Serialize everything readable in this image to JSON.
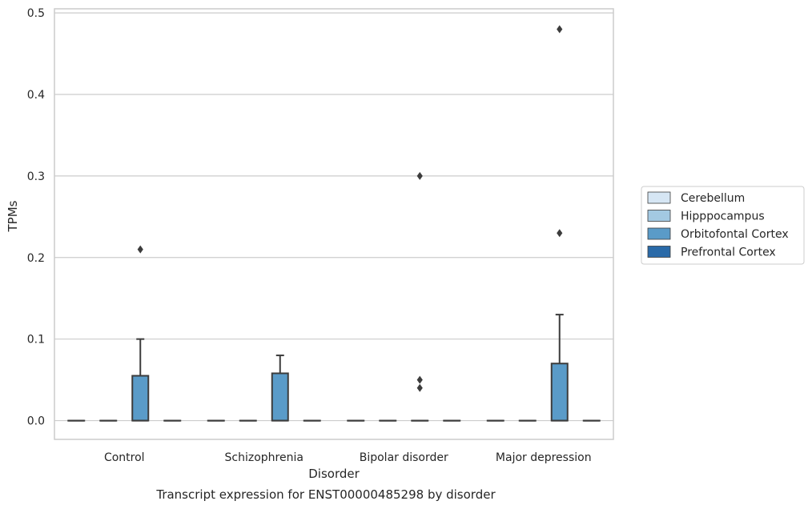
{
  "chart_data": {
    "type": "box",
    "title": "",
    "caption": "Transcript expression for ENST00000485298 by disorder",
    "xlabel": "Disorder",
    "ylabel": "TPMs",
    "ylim": [
      -0.023,
      0.505
    ],
    "yticks": [
      0.0,
      0.1,
      0.2,
      0.3,
      0.4,
      0.5
    ],
    "ytick_labels": [
      "0.0",
      "0.1",
      "0.2",
      "0.3",
      "0.4",
      "0.5"
    ],
    "grid": "horizontal",
    "legend_position": "right",
    "categories": [
      "Control",
      "Schizophrenia",
      "Bipolar disorder",
      "Major depression"
    ],
    "series": [
      {
        "name": "Cerebellum",
        "color": "#d6e6f4",
        "boxes": [
          {
            "q1": 0,
            "median": 0,
            "q3": 0,
            "whisker_low": 0,
            "whisker_high": 0,
            "outliers": []
          },
          {
            "q1": 0,
            "median": 0,
            "q3": 0,
            "whisker_low": 0,
            "whisker_high": 0,
            "outliers": []
          },
          {
            "q1": 0,
            "median": 0,
            "q3": 0,
            "whisker_low": 0,
            "whisker_high": 0,
            "outliers": []
          },
          {
            "q1": 0,
            "median": 0,
            "q3": 0,
            "whisker_low": 0,
            "whisker_high": 0,
            "outliers": []
          }
        ]
      },
      {
        "name": "Hipppocampus",
        "color": "#a3c9e2",
        "boxes": [
          {
            "q1": 0,
            "median": 0,
            "q3": 0,
            "whisker_low": 0,
            "whisker_high": 0,
            "outliers": []
          },
          {
            "q1": 0,
            "median": 0,
            "q3": 0,
            "whisker_low": 0,
            "whisker_high": 0,
            "outliers": []
          },
          {
            "q1": 0,
            "median": 0,
            "q3": 0,
            "whisker_low": 0,
            "whisker_high": 0,
            "outliers": []
          },
          {
            "q1": 0,
            "median": 0,
            "q3": 0,
            "whisker_low": 0,
            "whisker_high": 0,
            "outliers": []
          }
        ]
      },
      {
        "name": "Orbitofontal Cortex",
        "color": "#5a9bc8",
        "boxes": [
          {
            "q1": 0,
            "median": 0,
            "q3": 0.055,
            "whisker_low": 0,
            "whisker_high": 0.1,
            "outliers": [
              0.21
            ]
          },
          {
            "q1": 0,
            "median": 0,
            "q3": 0.058,
            "whisker_low": 0,
            "whisker_high": 0.08,
            "outliers": []
          },
          {
            "q1": 0,
            "median": 0,
            "q3": 0,
            "whisker_low": 0,
            "whisker_high": 0,
            "outliers": [
              0.04,
              0.05,
              0.3
            ]
          },
          {
            "q1": 0,
            "median": 0,
            "q3": 0.07,
            "whisker_low": 0,
            "whisker_high": 0.13,
            "outliers": [
              0.23,
              0.48
            ]
          }
        ]
      },
      {
        "name": "Prefrontal Cortex",
        "color": "#2a6aa8",
        "boxes": [
          {
            "q1": 0,
            "median": 0,
            "q3": 0,
            "whisker_low": 0,
            "whisker_high": 0,
            "outliers": []
          },
          {
            "q1": 0,
            "median": 0,
            "q3": 0,
            "whisker_low": 0,
            "whisker_high": 0,
            "outliers": []
          },
          {
            "q1": 0,
            "median": 0,
            "q3": 0,
            "whisker_low": 0,
            "whisker_high": 0,
            "outliers": []
          },
          {
            "q1": 0,
            "median": 0,
            "q3": 0,
            "whisker_low": 0,
            "whisker_high": 0,
            "outliers": []
          }
        ]
      }
    ]
  }
}
